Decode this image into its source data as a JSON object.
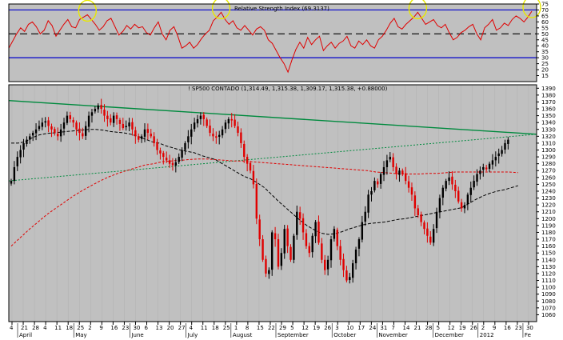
{
  "chart_data": [
    {
      "type": "line",
      "title": "Relative Strength Index (69.3137)",
      "ylim": [
        10,
        75
      ],
      "y_ticks": [
        15,
        20,
        25,
        30,
        35,
        40,
        45,
        50,
        55,
        60,
        65,
        70,
        75
      ],
      "reference_lines": [
        70,
        50,
        30
      ],
      "colors": {
        "rsi": "#e00000",
        "upper": "#0000cc",
        "mid": "#000000",
        "lower": "#0000cc",
        "highlight": "#e8e800"
      },
      "highlighted_peaks": 4,
      "series": [
        {
          "values": [
            38,
            44,
            50,
            55,
            52,
            58,
            60,
            56,
            50,
            53,
            61,
            57,
            48,
            53,
            58,
            62,
            56,
            55,
            62,
            64,
            66,
            62,
            58,
            53,
            56,
            61,
            63,
            56,
            49,
            52,
            57,
            54,
            58,
            55,
            56,
            51,
            49,
            55,
            60,
            50,
            45,
            53,
            56,
            48,
            38,
            40,
            43,
            38,
            41,
            46,
            50,
            53,
            61,
            64,
            68,
            62,
            58,
            61,
            55,
            53,
            57,
            53,
            49,
            54,
            56,
            53,
            45,
            42,
            36,
            30,
            25,
            18,
            28,
            37,
            43,
            38,
            47,
            41,
            45,
            48,
            36,
            40,
            43,
            38,
            42,
            44,
            48,
            40,
            38,
            44,
            41,
            45,
            40,
            38,
            45,
            48,
            53,
            59,
            63,
            56,
            54,
            58,
            61,
            64,
            68,
            63,
            58,
            60,
            62,
            57,
            55,
            58,
            51,
            45,
            47,
            51,
            53,
            56,
            58,
            50,
            45,
            55,
            58,
            62,
            53,
            55,
            59,
            57,
            62,
            65,
            63,
            60,
            64,
            69
          ]
        }
      ]
    },
    {
      "type": "candlestick",
      "title": "! SP500 CONTADO (1,314.49, 1,315.38, 1,309.17, 1,315.38, +0.88000)",
      "ylim": [
        1050,
        1395
      ],
      "y_ticks": [
        1060,
        1070,
        1080,
        1090,
        1100,
        1110,
        1120,
        1130,
        1140,
        1150,
        1160,
        1170,
        1180,
        1190,
        1200,
        1210,
        1220,
        1230,
        1240,
        1250,
        1260,
        1270,
        1280,
        1290,
        1300,
        1310,
        1320,
        1330,
        1340,
        1350,
        1360,
        1370,
        1380,
        1390
      ],
      "x_ticks": [
        "4",
        "21",
        "28",
        "4",
        "11",
        "18",
        "25",
        "2",
        "9",
        "16",
        "23",
        "30",
        "6",
        "13",
        "20",
        "27",
        "4",
        "11",
        "18",
        "25",
        "1",
        "8",
        "15",
        "22",
        "29",
        "5",
        "12",
        "19",
        "26",
        "3",
        "10",
        "17",
        "24",
        "31",
        "7",
        "14",
        "21",
        "28",
        "5",
        "12",
        "19",
        "26",
        "2",
        "9",
        "16",
        "23",
        "30"
      ],
      "months": [
        "April",
        "May",
        "June",
        "July",
        "August",
        "September",
        "October",
        "November",
        "December",
        "2012",
        "Fe"
      ],
      "colors": {
        "up": "#000000",
        "down": "#e00000",
        "trend_green": "#008a3e",
        "ma_black": "#000000",
        "ma_red": "#e00000"
      },
      "close": [
        1255,
        1275,
        1290,
        1300,
        1310,
        1315,
        1320,
        1325,
        1330,
        1335,
        1340,
        1342,
        1335,
        1330,
        1325,
        1320,
        1330,
        1340,
        1350,
        1345,
        1340,
        1330,
        1325,
        1320,
        1335,
        1350,
        1355,
        1360,
        1365,
        1360,
        1350,
        1345,
        1340,
        1350,
        1345,
        1338,
        1332,
        1335,
        1340,
        1330,
        1320,
        1315,
        1320,
        1330,
        1325,
        1320,
        1310,
        1300,
        1295,
        1290,
        1285,
        1280,
        1278,
        1282,
        1290,
        1300,
        1310,
        1320,
        1330,
        1340,
        1345,
        1350,
        1345,
        1335,
        1325,
        1320,
        1318,
        1322,
        1330,
        1340,
        1345,
        1343,
        1335,
        1325,
        1310,
        1290,
        1280,
        1270,
        1250,
        1200,
        1170,
        1140,
        1120,
        1125,
        1180,
        1170,
        1130,
        1150,
        1185,
        1160,
        1140,
        1175,
        1210,
        1200,
        1180,
        1160,
        1150,
        1175,
        1195,
        1165,
        1140,
        1125,
        1140,
        1170,
        1185,
        1160,
        1140,
        1125,
        1110,
        1115,
        1135,
        1155,
        1170,
        1195,
        1210,
        1235,
        1240,
        1255,
        1250,
        1265,
        1275,
        1285,
        1290,
        1275,
        1265,
        1270,
        1265,
        1255,
        1245,
        1235,
        1215,
        1205,
        1195,
        1185,
        1175,
        1165,
        1185,
        1210,
        1230,
        1245,
        1255,
        1260,
        1250,
        1240,
        1225,
        1215,
        1220,
        1235,
        1245,
        1255,
        1265,
        1270,
        1275,
        1272,
        1280,
        1285,
        1290,
        1295,
        1300,
        1310,
        1315
      ],
      "ma_short": [
        1310,
        1310,
        1312,
        1318,
        1322,
        1324,
        1325,
        1326,
        1327,
        1328,
        1329,
        1330,
        1330,
        1329,
        1327,
        1326,
        1325,
        1323,
        1320,
        1316,
        1312,
        1310,
        1306,
        1303,
        1300,
        1298,
        1296,
        1292,
        1289,
        1286,
        1280,
        1274,
        1268,
        1262,
        1258,
        1252,
        1245,
        1235,
        1225,
        1216,
        1207,
        1198,
        1190,
        1184,
        1179,
        1177,
        1178,
        1181,
        1185,
        1188,
        1191,
        1193,
        1194,
        1195,
        1197,
        1199,
        1200,
        1202,
        1204,
        1206,
        1208,
        1210,
        1212,
        1214,
        1216,
        1222,
        1228,
        1233,
        1237,
        1240,
        1242,
        1245,
        1248
      ],
      "ma_long": [
        1160,
        1172,
        1184,
        1195,
        1206,
        1215,
        1224,
        1233,
        1241,
        1248,
        1255,
        1261,
        1266,
        1270,
        1274,
        1278,
        1280,
        1283,
        1284,
        1285,
        1286,
        1287,
        1287,
        1286,
        1285,
        1284,
        1284,
        1283,
        1282,
        1281,
        1280,
        1279,
        1278,
        1277,
        1276,
        1275,
        1274,
        1273,
        1272,
        1271,
        1270,
        1268,
        1267,
        1266,
        1265,
        1265,
        1265,
        1266,
        1266,
        1267,
        1268,
        1268,
        1268,
        1268,
        1268,
        1268,
        1268,
        1267
      ],
      "trend_green_solid": [
        [
          0,
          1372
        ],
        [
          1,
          1323
        ]
      ],
      "trend_green_dotted": [
        [
          0,
          1255
        ],
        [
          1,
          1323
        ]
      ]
    }
  ]
}
